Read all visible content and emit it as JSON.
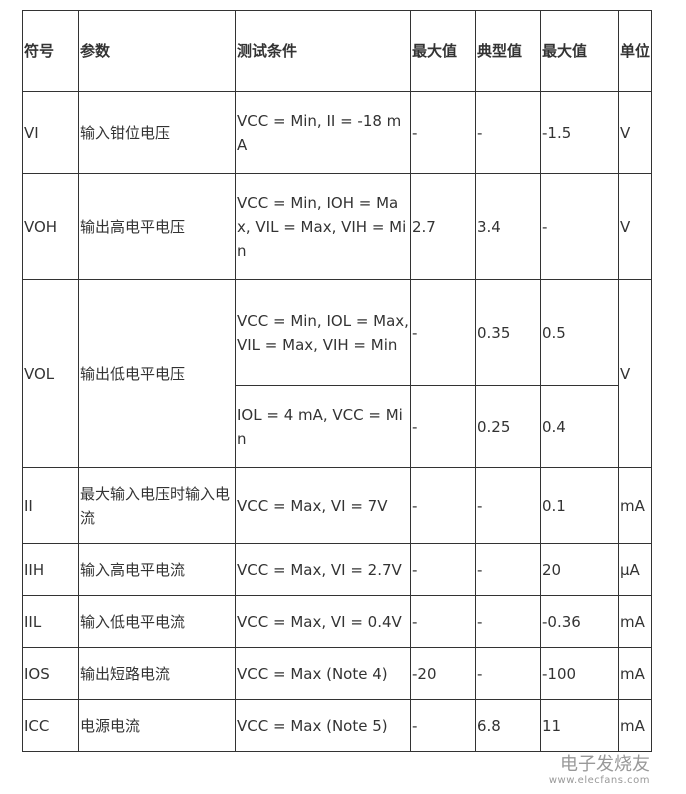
{
  "headers": [
    "符号",
    "参数",
    "测试条件",
    "最大值",
    "典型值",
    "最大值",
    "单位"
  ],
  "rows": {
    "vi": {
      "symbol": "VI",
      "param": "输入钳位电压",
      "cond": "VCC = Min, II = -18 mA",
      "max1": "-",
      "typ": "-",
      "max2": "-1.5",
      "unit": "V"
    },
    "voh": {
      "symbol": "VOH",
      "param": "输出高电平电压",
      "cond": "VCC = Min, IOH = Max, VIL = Max, VIH = Min",
      "max1": "2.7",
      "typ": "3.4",
      "max2": "-",
      "unit": "V"
    },
    "vol": {
      "symbol": "VOL",
      "param": "输出低电平电压",
      "cond": "VCC = Min, IOL = Max, VIL = Max, VIH = Min",
      "max1": "-",
      "typ": "0.35",
      "max2": "0.5",
      "unit": "V"
    },
    "vol2": {
      "cond": "IOL = 4 mA, VCC = Min",
      "max1": "-",
      "typ": "0.25",
      "max2": "0.4"
    },
    "ii": {
      "symbol": "II",
      "param": "最大输入电压时输入电流",
      "cond": "VCC = Max, VI = 7V",
      "max1": "-",
      "typ": "-",
      "max2": "0.1",
      "unit": "mA"
    },
    "iih": {
      "symbol": "IIH",
      "param": "输入高电平电流",
      "cond": "VCC = Max, VI = 2.7V",
      "max1": "-",
      "typ": "-",
      "max2": "20",
      "unit": "µA"
    },
    "iil": {
      "symbol": "IIL",
      "param": "输入低电平电流",
      "cond": "VCC = Max, VI = 0.4V",
      "max1": "-",
      "typ": "-",
      "max2": "-0.36",
      "unit": "mA"
    },
    "ios": {
      "symbol": "IOS",
      "param": "输出短路电流",
      "cond": "VCC = Max (Note 4)",
      "max1": "-20",
      "typ": "-",
      "max2": "-100",
      "unit": "mA"
    },
    "icc": {
      "symbol": "ICC",
      "param": "电源电流",
      "cond": "VCC = Max (Note 5)",
      "max1": "-",
      "typ": "6.8",
      "max2": "11",
      "unit": "mA"
    }
  },
  "watermark": {
    "name": "电子发烧友",
    "url": "www.elecfans.com"
  }
}
